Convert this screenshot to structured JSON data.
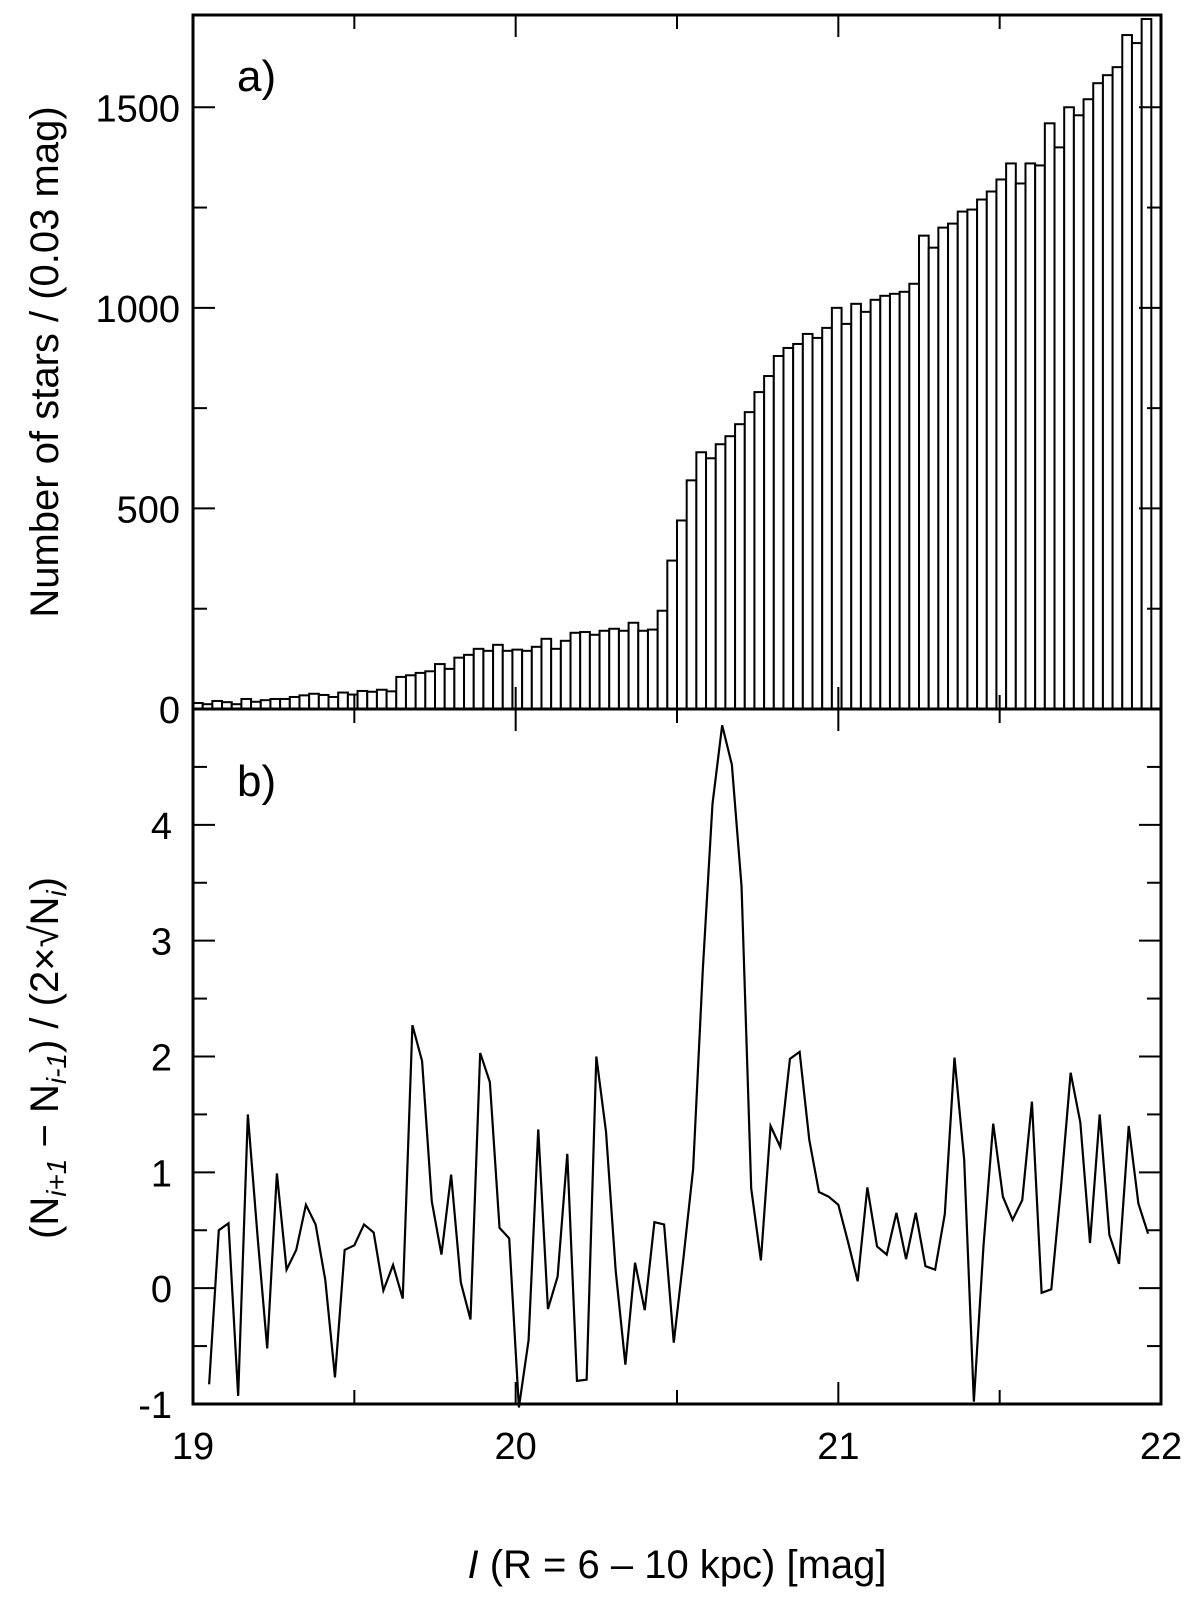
{
  "chart_data": [
    {
      "type": "bar",
      "panel_label": "a)",
      "ylabel": "Number of stars / (0.03 mag)",
      "xlim": [
        19,
        22
      ],
      "ylim": [
        0,
        1730
      ],
      "yticks": [
        0,
        500,
        1000,
        1500
      ],
      "ytick_labels": [
        "0",
        "500",
        "1000",
        "1500"
      ],
      "bin_start": 19.0,
      "bin_width": 0.03,
      "values": [
        15,
        12,
        20,
        17,
        12,
        25,
        18,
        22,
        25,
        25,
        30,
        34,
        38,
        35,
        30,
        41,
        36,
        45,
        43,
        48,
        44,
        80,
        84,
        90,
        94,
        112,
        100,
        128,
        135,
        150,
        145,
        160,
        145,
        148,
        145,
        155,
        175,
        150,
        170,
        190,
        192,
        185,
        195,
        200,
        195,
        215,
        195,
        198,
        245,
        370,
        470,
        570,
        640,
        625,
        660,
        680,
        710,
        740,
        790,
        830,
        880,
        900,
        910,
        935,
        925,
        950,
        1000,
        960,
        1010,
        990,
        1020,
        1030,
        1035,
        1040,
        1060,
        1180,
        1150,
        1200,
        1210,
        1240,
        1245,
        1270,
        1290,
        1320,
        1360,
        1310,
        1360,
        1355,
        1460,
        1400,
        1500,
        1480,
        1520,
        1560,
        1580,
        1600,
        1680,
        1660,
        1720
      ]
    },
    {
      "type": "line",
      "panel_label": "b)",
      "xlabel_italic": "I",
      "xlabel_rest": " (R = 6 – 10 kpc) [mag]",
      "ylabel_parts": [
        "(N",
        "i+1",
        " − N",
        "i-1",
        ") / (2×√N",
        "i",
        ")"
      ],
      "xlim": [
        19,
        22
      ],
      "ylim": [
        -1,
        5
      ],
      "xticks": [
        19,
        20,
        21,
        22
      ],
      "xtick_labels": [
        "19",
        "20",
        "21",
        "22"
      ],
      "yticks": [
        -1,
        0,
        1,
        2,
        3,
        4
      ],
      "ytick_labels": [
        "-1",
        "0",
        "1",
        "2",
        "3",
        "4"
      ],
      "x_start": 19.05,
      "x_step": 0.03,
      "values": [
        -0.83,
        0.5,
        0.56,
        -0.93,
        1.5,
        0.45,
        -0.52,
        0.99,
        0.16,
        0.33,
        0.72,
        0.55,
        0.07,
        -0.77,
        0.33,
        0.37,
        0.55,
        0.48,
        -0.02,
        0.2,
        -0.09,
        2.27,
        1.96,
        0.75,
        0.29,
        0.98,
        0.05,
        -0.27,
        2.03,
        1.78,
        0.52,
        0.43,
        -1.03,
        -0.45,
        1.37,
        -0.18,
        0.1,
        1.16,
        -0.8,
        -0.79,
        2.0,
        1.35,
        0.15,
        -0.66,
        0.22,
        -0.19,
        0.57,
        0.55,
        -0.47,
        0.26,
        1.03,
        2.75,
        4.18,
        4.86,
        4.52,
        3.47,
        0.86,
        0.24,
        1.4,
        1.22,
        1.98,
        2.04,
        1.28,
        0.83,
        0.79,
        0.72,
        0.4,
        0.06,
        0.87,
        0.36,
        0.29,
        0.65,
        0.25,
        0.65,
        0.19,
        0.16,
        0.64,
        1.99,
        1.11,
        -0.98,
        0.37,
        1.42,
        0.79,
        0.59,
        0.76,
        1.61,
        -0.04,
        -0.01,
        0.87,
        1.86,
        1.43,
        0.39,
        1.5,
        0.46,
        0.21,
        1.4,
        0.73,
        0.47
      ]
    }
  ]
}
